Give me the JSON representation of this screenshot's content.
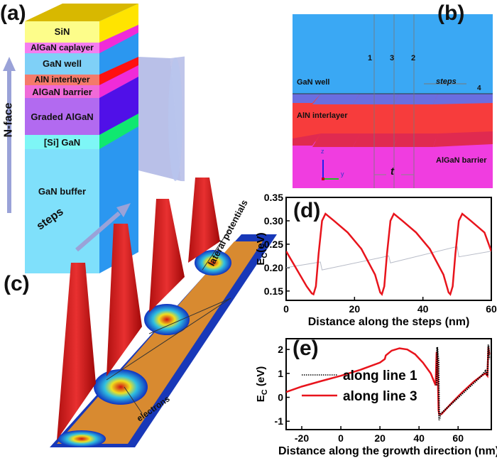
{
  "panel_labels": {
    "a": "(a)",
    "b": "(b)",
    "c": "(c)",
    "d": "(d)",
    "e": "(e)"
  },
  "panel_a": {
    "growth_label": "N-face",
    "layers": [
      "SiN",
      "AlGaN caplayer",
      "GaN well",
      "AlN interlayer",
      "AlGaN barrier",
      "Graded AlGaN",
      "[Si] GaN",
      "GaN buffer"
    ],
    "colors": {
      "SiN": "#fdfd8a",
      "AlGaN caplayer": "#f47ef0",
      "GaN well": "#7fd0f7",
      "AlN interlayer": "#f47a6a",
      "AlGaN barrier": "#f06ad8",
      "Graded AlGaN": "#b26af0",
      "[Si] GaN": "#7ef6f6",
      "GaN buffer": "#7fe0fb"
    }
  },
  "panel_b": {
    "regions": [
      "GaN well",
      "AlN interlayer",
      "AlGaN barrier"
    ],
    "line_labels": [
      "1",
      "3",
      "2",
      "4"
    ],
    "steps_label": "steps",
    "spacing_label": "t",
    "axes": {
      "z": "z",
      "y": "y"
    },
    "colors": {
      "well": "#3aa8f4",
      "interlayer": "#f73c3c",
      "barrier": "#f03de0"
    }
  },
  "panel_c": {
    "steps_label": "steps",
    "lateral_label": "lateral potentials",
    "electrons_label": "electrons"
  },
  "chart_data": [
    {
      "type": "line",
      "panel": "d",
      "xlabel": "Distance along the steps (nm)",
      "ylabel": "E_C(eV)",
      "xlim": [
        0,
        60
      ],
      "ylim": [
        0.13,
        0.35
      ],
      "xticks": [
        0,
        20,
        40,
        60
      ],
      "yticks": [
        0.15,
        0.2,
        0.25,
        0.3,
        0.35
      ],
      "series": [
        {
          "color": "#e8141c",
          "x": [
            0,
            2,
            4,
            6,
            7.5,
            8,
            8.7,
            9.5,
            10.5,
            11.5,
            14,
            18,
            22,
            26,
            27.5,
            28,
            28.7,
            29.5,
            30.5,
            31.5,
            34,
            38,
            42,
            46,
            47.5,
            48,
            48.7,
            49.5,
            50.5,
            51.5,
            54,
            58,
            60
          ],
          "y": [
            0.235,
            0.21,
            0.185,
            0.16,
            0.145,
            0.143,
            0.16,
            0.23,
            0.3,
            0.315,
            0.3,
            0.275,
            0.24,
            0.185,
            0.147,
            0.143,
            0.16,
            0.23,
            0.3,
            0.315,
            0.3,
            0.275,
            0.24,
            0.185,
            0.147,
            0.143,
            0.16,
            0.23,
            0.3,
            0.315,
            0.3,
            0.275,
            0.235
          ]
        },
        {
          "color": "#b8bcc8",
          "x": [
            0,
            10,
            10.5,
            30,
            30.5,
            50,
            50.5,
            60
          ],
          "y": [
            0.2,
            0.212,
            0.195,
            0.225,
            0.21,
            0.245,
            0.223,
            0.235
          ]
        }
      ]
    },
    {
      "type": "line",
      "panel": "e",
      "xlabel": "Distance along the growth direction (nm)",
      "ylabel": "E_C (eV)",
      "xlim": [
        -28,
        77
      ],
      "ylim": [
        -1.35,
        2.45
      ],
      "xticks": [
        -20,
        0,
        20,
        40,
        60
      ],
      "yticks": [
        -1,
        0,
        1,
        2
      ],
      "series": [
        {
          "name": "along line 1",
          "color": "#000000",
          "style": "dotted",
          "x": [
            49,
            49.3,
            50,
            50.3,
            51,
            72,
            74,
            75,
            75.5,
            76
          ],
          "y": [
            0.5,
            2.1,
            1.5,
            -0.95,
            -0.7,
            0.9,
            1.1,
            0.9,
            2.2,
            1.6
          ]
        },
        {
          "name": "along line 3",
          "color": "#e8141c",
          "style": "solid",
          "x": [
            -28,
            -20,
            -10,
            0,
            10,
            20,
            22.5,
            23,
            26,
            30,
            34,
            38,
            42,
            46,
            48.5,
            49,
            49.4,
            50,
            50.3,
            51.5,
            56,
            62,
            68,
            72,
            74,
            75,
            75.5,
            76
          ],
          "y": [
            0.22,
            0.45,
            0.68,
            0.9,
            1.15,
            1.45,
            1.6,
            1.75,
            1.95,
            2.05,
            2.0,
            1.8,
            1.45,
            1.0,
            0.5,
            1.9,
            1.6,
            -0.55,
            -0.7,
            -0.7,
            -0.3,
            0.2,
            0.65,
            0.9,
            1.0,
            0.9,
            2.1,
            1.8
          ]
        }
      ]
    }
  ]
}
